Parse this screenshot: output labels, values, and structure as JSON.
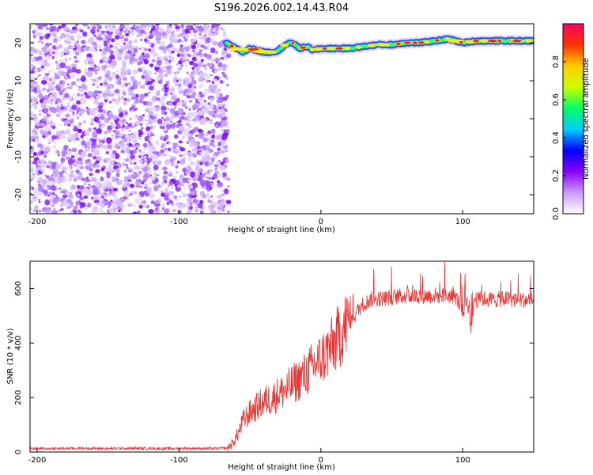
{
  "title": "S196.2026.002.14.43.R04",
  "chart_data": [
    {
      "type": "heatmap",
      "name": "spectrogram",
      "xlabel": "Height of straight line (km)",
      "ylabel": "Frequency (Hz)",
      "xlim": [
        -205,
        150
      ],
      "ylim": [
        -25,
        25
      ],
      "xticks": [
        -200,
        -100,
        0,
        100
      ],
      "xtick_labels": [
        "-200",
        "-100",
        "0",
        "100"
      ],
      "yticks": [
        -20,
        -10,
        0,
        10,
        20
      ],
      "ytick_labels": [
        "-20",
        "-10",
        "0",
        "10",
        "20"
      ],
      "noise_region_x": [
        -205,
        -65
      ],
      "signal_track": {
        "x": [
          -67,
          -60,
          -55,
          -50,
          -45,
          -40,
          -35,
          -30,
          -25,
          -20,
          -15,
          -10,
          -5,
          0,
          10,
          20,
          30,
          40,
          50,
          60,
          70,
          80,
          90,
          100,
          110,
          120,
          130,
          140,
          150
        ],
        "freq": [
          20,
          18.5,
          17.5,
          18.5,
          18,
          17.5,
          17.5,
          18,
          19.5,
          20,
          18.5,
          19,
          18,
          18.5,
          18.5,
          18.5,
          19,
          19.5,
          19.5,
          20,
          20,
          20.5,
          21,
          20,
          20.5,
          20.5,
          20.5,
          20.5,
          20.5
        ]
      },
      "colorbar": {
        "label": "Normalized spectral amplitude",
        "ticks": [
          0.0,
          0.2,
          0.4,
          0.6,
          0.8
        ],
        "tick_labels": [
          "0.0",
          "0.2",
          "0.4",
          "0.6",
          "0.8"
        ],
        "range": [
          0,
          1
        ],
        "colors": [
          "#ffffff",
          "#cc99ff",
          "#8800ff",
          "#0000ff",
          "#00ccff",
          "#00ff66",
          "#ccff00",
          "#ffcc00",
          "#ff3300",
          "#ff0066"
        ]
      }
    },
    {
      "type": "line",
      "name": "snr",
      "xlabel": "Height of straight line (km)",
      "ylabel": "SNR (10 * v/v)",
      "xlim": [
        -205,
        150
      ],
      "ylim": [
        0,
        700
      ],
      "xticks": [
        -200,
        -100,
        0,
        100
      ],
      "xtick_labels": [
        "-200",
        "-100",
        "0",
        "100"
      ],
      "yticks": [
        0,
        200,
        400,
        600
      ],
      "ytick_labels": [
        "0",
        "200",
        "400",
        "600"
      ],
      "color": "#ee3333",
      "series": [
        {
          "name": "SNR",
          "x": [
            -205,
            -190,
            -170,
            -150,
            -130,
            -110,
            -90,
            -75,
            -66,
            -62,
            -58,
            -55,
            -50,
            -45,
            -40,
            -35,
            -30,
            -25,
            -20,
            -15,
            -10,
            -5,
            0,
            5,
            10,
            15,
            20,
            25,
            30,
            35,
            40,
            45,
            50,
            60,
            70,
            80,
            90,
            95,
            98,
            100,
            103,
            106,
            108,
            110,
            115,
            120,
            130,
            140,
            150
          ],
          "y": [
            12,
            12,
            13,
            12,
            13,
            12,
            13,
            12,
            14,
            30,
            70,
            110,
            140,
            160,
            180,
            190,
            205,
            220,
            240,
            260,
            280,
            310,
            330,
            360,
            390,
            430,
            470,
            510,
            540,
            555,
            560,
            560,
            565,
            570,
            570,
            570,
            570,
            565,
            540,
            500,
            560,
            450,
            560,
            555,
            560,
            555,
            560,
            555,
            555
          ]
        }
      ]
    }
  ]
}
